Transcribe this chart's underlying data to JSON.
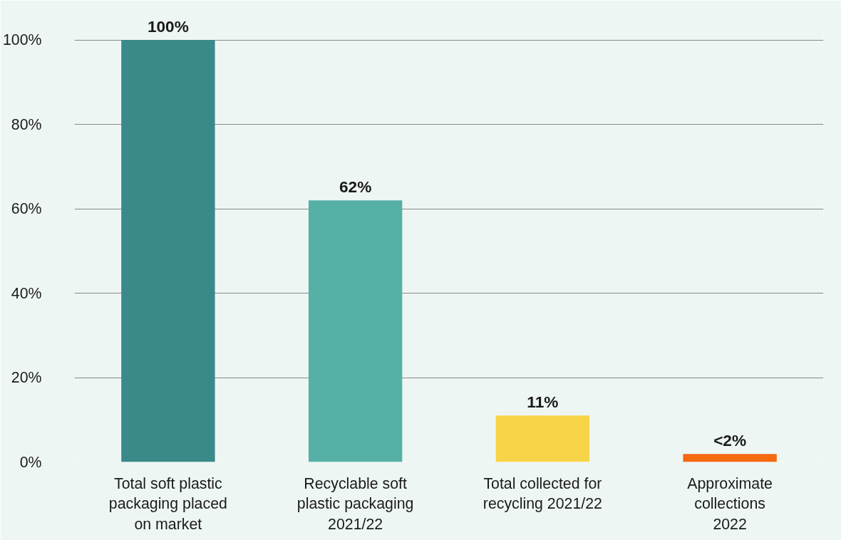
{
  "chart_data": {
    "type": "bar",
    "categories": [
      "Total soft plastic\npackaging placed\non market",
      "Recyclable soft\nplastic packaging\n2021/22",
      "Total collected for\nrecycling 2021/22",
      "Approximate\ncollections\n2022"
    ],
    "values": [
      100,
      62,
      11,
      1.9
    ],
    "colors": [
      "#3a8a89",
      "#55b0a5",
      "#f8d548",
      "#f5690f"
    ],
    "value_labels": [
      "100%",
      "62%",
      "11%",
      "<2%"
    ],
    "ylim": [
      0,
      106
    ],
    "yticks": [
      {
        "value": 0,
        "label": "0%"
      },
      {
        "value": 20,
        "label": "20%"
      },
      {
        "value": 40,
        "label": "40%"
      },
      {
        "value": 60,
        "label": "60%"
      },
      {
        "value": 80,
        "label": "80%"
      },
      {
        "value": 100,
        "label": "100%"
      }
    ],
    "grid": "y"
  }
}
